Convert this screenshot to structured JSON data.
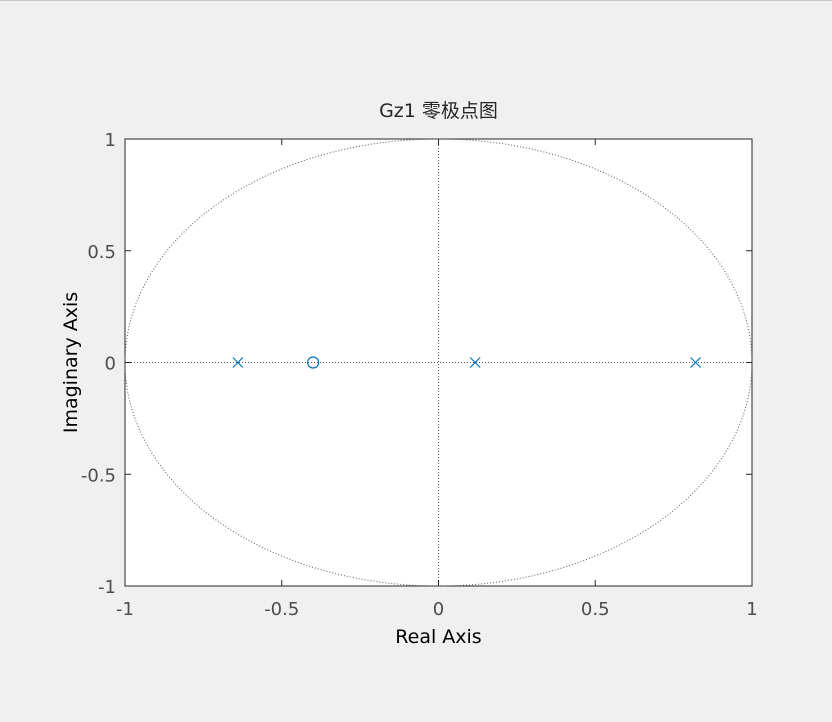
{
  "chart_data": {
    "type": "scatter",
    "title": "Gz1 零极点图",
    "xlabel": "Real Axis",
    "ylabel": "Imaginary Axis",
    "xlim": [
      -1,
      1
    ],
    "ylim": [
      -1,
      1
    ],
    "xticks": [
      -1,
      -0.5,
      0,
      0.5,
      1
    ],
    "yticks": [
      -1,
      -0.5,
      0,
      0.5,
      1
    ],
    "xtick_labels": [
      "-1",
      "-0.5",
      "0",
      "0.5",
      "1"
    ],
    "ytick_labels": [
      "-1",
      "-0.5",
      "0",
      "0.5",
      "1"
    ],
    "grid": false,
    "unit_circle": true,
    "series": [
      {
        "kind": "poles",
        "marker": "x",
        "color": "#0072bd",
        "points": [
          {
            "x": -0.64,
            "y": 0
          },
          {
            "x": 0.117,
            "y": 0
          },
          {
            "x": 0.82,
            "y": 0
          }
        ]
      },
      {
        "kind": "zeros",
        "marker": "o",
        "color": "#0072bd",
        "points": [
          {
            "x": -0.4,
            "y": 0
          }
        ]
      }
    ]
  }
}
